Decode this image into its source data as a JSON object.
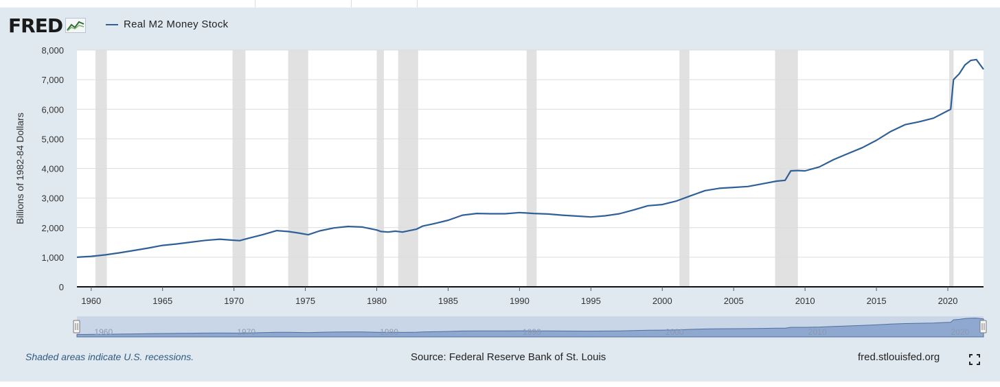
{
  "header": {
    "logo_text": "FRED",
    "logo_icon": "fred-chart-icon",
    "legend_label": "Real M2 Money Stock"
  },
  "footer": {
    "recession_note": "Shaded areas indicate U.S. recessions.",
    "source": "Source: Federal Reserve Bank of St. Louis",
    "site": "fred.stlouisfed.org",
    "expand_icon": "fullscreen-icon"
  },
  "colors": {
    "series": "#2f5f97",
    "recession": "#e1e1e1",
    "panel": "#e1e9f0",
    "navigator_fill": "#8fa8cf"
  },
  "chart_data": {
    "type": "line",
    "title": "",
    "xlabel": "",
    "ylabel": "Billions of 1982-84 Dollars",
    "xlim": [
      1959.0,
      2022.5
    ],
    "ylim": [
      0,
      8000
    ],
    "yticks": [
      0,
      1000,
      2000,
      3000,
      4000,
      5000,
      6000,
      7000,
      8000
    ],
    "ytick_labels": [
      "0",
      "1,000",
      "2,000",
      "3,000",
      "4,000",
      "5,000",
      "6,000",
      "7,000",
      "8,000"
    ],
    "xticks": [
      1960,
      1965,
      1970,
      1975,
      1980,
      1985,
      1990,
      1995,
      2000,
      2005,
      2010,
      2015,
      2020
    ],
    "xtick_labels": [
      "1960",
      "1965",
      "1970",
      "1975",
      "1980",
      "1985",
      "1990",
      "1995",
      "2000",
      "2005",
      "2010",
      "2015",
      "2020"
    ],
    "grid": true,
    "legend": "top-left",
    "recessions": [
      [
        1960.3,
        1961.1
      ],
      [
        1969.9,
        1970.8
      ],
      [
        1973.8,
        1975.2
      ],
      [
        1980.0,
        1980.5
      ],
      [
        1981.5,
        1982.9
      ],
      [
        1990.5,
        1991.2
      ],
      [
        2001.2,
        2001.9
      ],
      [
        2007.9,
        2009.5
      ],
      [
        2020.1,
        2020.4
      ]
    ],
    "navigator": {
      "tick_labels": [
        "1960",
        "1970",
        "1980",
        "1990",
        "2000",
        "2010",
        "2020"
      ],
      "range": [
        1959.0,
        2022.5
      ]
    },
    "series": [
      {
        "name": "Real M2 Money Stock",
        "x": [
          1959.0,
          1960.0,
          1961.0,
          1962.0,
          1963.0,
          1964.0,
          1965.0,
          1966.0,
          1967.0,
          1968.0,
          1969.0,
          1969.8,
          1970.4,
          1971.0,
          1972.0,
          1973.0,
          1973.8,
          1974.5,
          1975.2,
          1976.0,
          1977.0,
          1978.0,
          1979.0,
          1980.0,
          1980.3,
          1980.8,
          1981.3,
          1981.8,
          1982.3,
          1982.8,
          1983.2,
          1984.0,
          1985.0,
          1986.0,
          1987.0,
          1988.0,
          1989.0,
          1990.0,
          1991.0,
          1992.0,
          1993.0,
          1994.0,
          1995.0,
          1996.0,
          1997.0,
          1998.0,
          1999.0,
          2000.0,
          2001.0,
          2002.0,
          2003.0,
          2004.0,
          2005.0,
          2006.0,
          2007.0,
          2008.0,
          2008.6,
          2009.0,
          2009.5,
          2010.0,
          2011.0,
          2012.0,
          2013.0,
          2014.0,
          2015.0,
          2016.0,
          2017.0,
          2018.0,
          2019.0,
          2020.0,
          2020.2,
          2020.4,
          2020.8,
          2021.2,
          2021.6,
          2022.0,
          2022.5
        ],
        "y": [
          1000,
          1030,
          1080,
          1150,
          1230,
          1310,
          1400,
          1450,
          1510,
          1570,
          1610,
          1580,
          1560,
          1640,
          1760,
          1900,
          1870,
          1820,
          1760,
          1890,
          1990,
          2040,
          2020,
          1920,
          1870,
          1850,
          1880,
          1850,
          1900,
          1950,
          2050,
          2130,
          2250,
          2420,
          2480,
          2470,
          2470,
          2510,
          2480,
          2460,
          2420,
          2390,
          2360,
          2400,
          2470,
          2600,
          2740,
          2780,
          2900,
          3080,
          3250,
          3330,
          3360,
          3390,
          3480,
          3570,
          3600,
          3920,
          3930,
          3920,
          4050,
          4300,
          4500,
          4700,
          4950,
          5250,
          5480,
          5580,
          5700,
          5950,
          6000,
          7000,
          7200,
          7500,
          7650,
          7680,
          7350
        ]
      }
    ]
  }
}
